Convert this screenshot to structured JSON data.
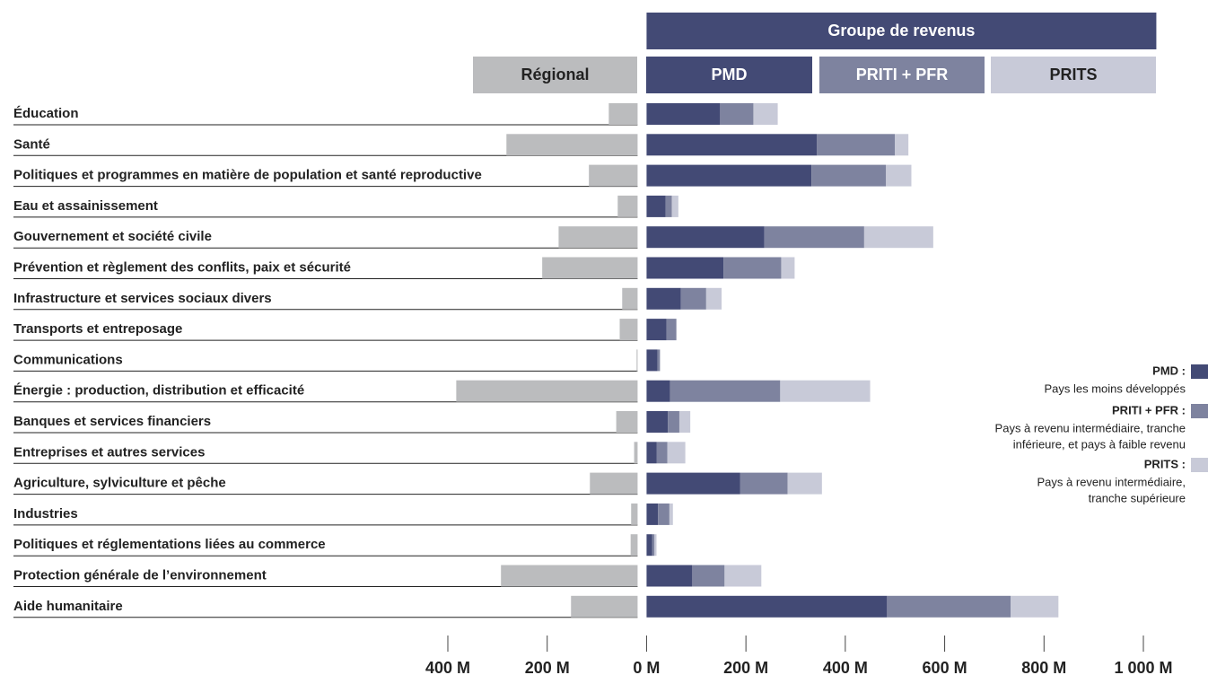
{
  "chart_data": {
    "type": "diverging-stacked-bar",
    "group_header": "Groupe de revenus",
    "categories": [
      "Éducation",
      "Santé",
      "Politiques et programmes en matière de population et santé reproductive",
      "Eau et assainissement",
      "Gouvernement et société civile",
      "Prévention et règlement des conflits, paix et sécurité",
      "Infrastructure et services sociaux divers",
      "Transports et entreposage",
      "Communications",
      "Énergie : production, distribution et efficacité",
      "Banques et services financiers",
      "Entreprises et autres services",
      "Agriculture, sylviculture et pêche",
      "Industries",
      "Politiques et réglementations liées au commerce",
      "Protection générale de l’environnement",
      "Aide humanitaire"
    ],
    "series": [
      {
        "name": "Régional",
        "color": "#bbbcbe",
        "values": [
          -58,
          -264,
          -98,
          -40,
          -159,
          -192,
          -31,
          -36,
          -2,
          -365,
          -43,
          -7,
          -96,
          -13,
          -14,
          -275,
          -134
        ]
      },
      {
        "name": "PMD",
        "color": "#434a75",
        "values": [
          148,
          343,
          332,
          38,
          237,
          155,
          69,
          40,
          22,
          47,
          43,
          20,
          188,
          23,
          11,
          92,
          484
        ]
      },
      {
        "name": "PRITI + PFR",
        "color": "#7e839f",
        "values": [
          67,
          157,
          150,
          13,
          201,
          116,
          51,
          20,
          5,
          222,
          23,
          22,
          96,
          23,
          5,
          65,
          249
        ]
      },
      {
        "name": "PRITS",
        "color": "#c8cad8",
        "values": [
          49,
          27,
          51,
          13,
          139,
          27,
          31,
          0,
          0,
          181,
          22,
          36,
          69,
          7,
          4,
          74,
          96
        ]
      }
    ],
    "xlim": [
      -400,
      1000
    ],
    "xticks": [
      {
        "value": -400,
        "label": "400 M"
      },
      {
        "value": -200,
        "label": "200 M"
      },
      {
        "value": 0,
        "label": "0 M"
      },
      {
        "value": 200,
        "label": "200 M"
      },
      {
        "value": 400,
        "label": "400 M"
      },
      {
        "value": 600,
        "label": "600 M"
      },
      {
        "value": 800,
        "label": "800 M"
      },
      {
        "value": 1000,
        "label": "1 000 M"
      }
    ],
    "legend": [
      {
        "label": "PMD :",
        "lines": [
          "Pays les moins développés"
        ]
      },
      {
        "label": "PRITI + PFR :",
        "lines": [
          "Pays à revenu intermédiaire, tranche",
          "inférieure, et pays à faible revenu"
        ]
      },
      {
        "label": "PRITS :",
        "lines": [
          "Pays à revenu intermédiaire,",
          "tranche supérieure"
        ]
      }
    ]
  }
}
